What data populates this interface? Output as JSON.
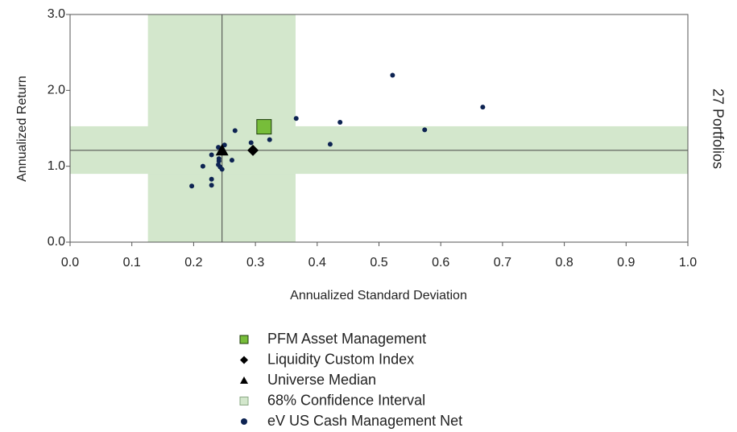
{
  "chart_data": {
    "type": "scatter",
    "xlabel": "Annualized Standard Deviation",
    "ylabel": "Annualized Return",
    "side_label": "27 Portfolios",
    "xlim": [
      0,
      1
    ],
    "ylim": [
      0,
      3
    ],
    "xticks": [
      {
        "value": 0,
        "label": "0.0"
      },
      {
        "value": 0.1,
        "label": "0.1"
      },
      {
        "value": 0.2,
        "label": "0.2"
      },
      {
        "value": 0.3,
        "label": "0.3"
      },
      {
        "value": 0.4,
        "label": "0.4"
      },
      {
        "value": 0.5,
        "label": "0.5"
      },
      {
        "value": 0.6,
        "label": "0.6"
      },
      {
        "value": 0.7,
        "label": "0.7"
      },
      {
        "value": 0.8,
        "label": "0.8"
      },
      {
        "value": 0.9,
        "label": "0.9"
      },
      {
        "value": 1,
        "label": "1.0"
      }
    ],
    "yticks": [
      {
        "value": 0,
        "label": "0.0"
      },
      {
        "value": 1,
        "label": "1.0"
      },
      {
        "value": 2,
        "label": "2.0"
      },
      {
        "value": 3,
        "label": "3.0"
      }
    ],
    "confidence_interval": {
      "name": "68% Confidence Interval",
      "color": "#d3e7cc",
      "x": [
        0.126,
        0.365
      ],
      "y": [
        0.9,
        1.527
      ]
    },
    "series": [
      {
        "name": "PFM Asset Management",
        "color": "#77bd3a",
        "marker": "square",
        "x": [
          0.314
        ],
        "values": [
          1.52
        ]
      },
      {
        "name": "Liquidity Custom Index",
        "color": "#000000",
        "marker": "diamond",
        "x": [
          0.296
        ],
        "values": [
          1.21
        ]
      },
      {
        "name": "Universe Median",
        "color": "#000000",
        "marker": "triangle",
        "x": [
          0.246
        ],
        "values": [
          1.21
        ]
      },
      {
        "name": "eV US Cash Management Net",
        "color": "#0d2352",
        "marker": "circle",
        "x": [
          0.197,
          0.215,
          0.229,
          0.229,
          0.229,
          0.24,
          0.241,
          0.241,
          0.24,
          0.243,
          0.246,
          0.25,
          0.262,
          0.267,
          0.293,
          0.323,
          0.366,
          0.421,
          0.437,
          0.522,
          0.574,
          0.668
        ],
        "values": [
          0.74,
          1.0,
          1.15,
          0.83,
          0.75,
          1.25,
          1.1,
          1.07,
          1.02,
          0.99,
          0.96,
          1.28,
          1.08,
          1.47,
          1.31,
          1.35,
          1.63,
          1.29,
          1.58,
          2.2,
          1.48,
          1.78
        ]
      }
    ]
  }
}
